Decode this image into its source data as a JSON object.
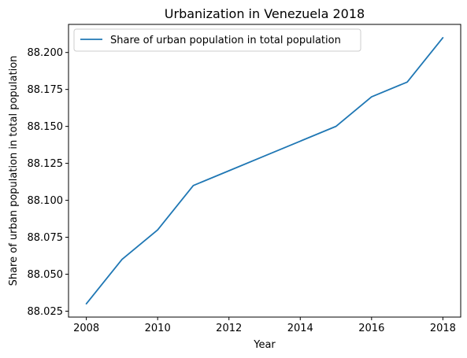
{
  "chart_data": {
    "type": "line",
    "title": "Urbanization in Venezuela 2018",
    "xlabel": "Year",
    "ylabel": "Share of urban population in total population",
    "x": [
      2008,
      2009,
      2010,
      2011,
      2012,
      2013,
      2014,
      2015,
      2016,
      2017,
      2018
    ],
    "series": [
      {
        "name": "Share of urban population in total population",
        "color": "#1f77b4",
        "values": [
          88.03,
          88.06,
          88.08,
          88.11,
          88.12,
          88.13,
          88.14,
          88.15,
          88.17,
          88.18,
          88.21
        ]
      }
    ],
    "xticks": [
      2008,
      2010,
      2012,
      2014,
      2016,
      2018
    ],
    "xtick_labels": [
      "2008",
      "2010",
      "2012",
      "2014",
      "2016",
      "2018"
    ],
    "yticks": [
      88.025,
      88.05,
      88.075,
      88.1,
      88.125,
      88.15,
      88.175,
      88.2
    ],
    "ytick_labels": [
      "88.025",
      "88.050",
      "88.075",
      "88.100",
      "88.125",
      "88.150",
      "88.175",
      "88.200"
    ],
    "xlim": [
      2007.5,
      2018.5
    ],
    "ylim": [
      88.021,
      88.219
    ],
    "grid": false,
    "legend_placement": "upper-left"
  }
}
